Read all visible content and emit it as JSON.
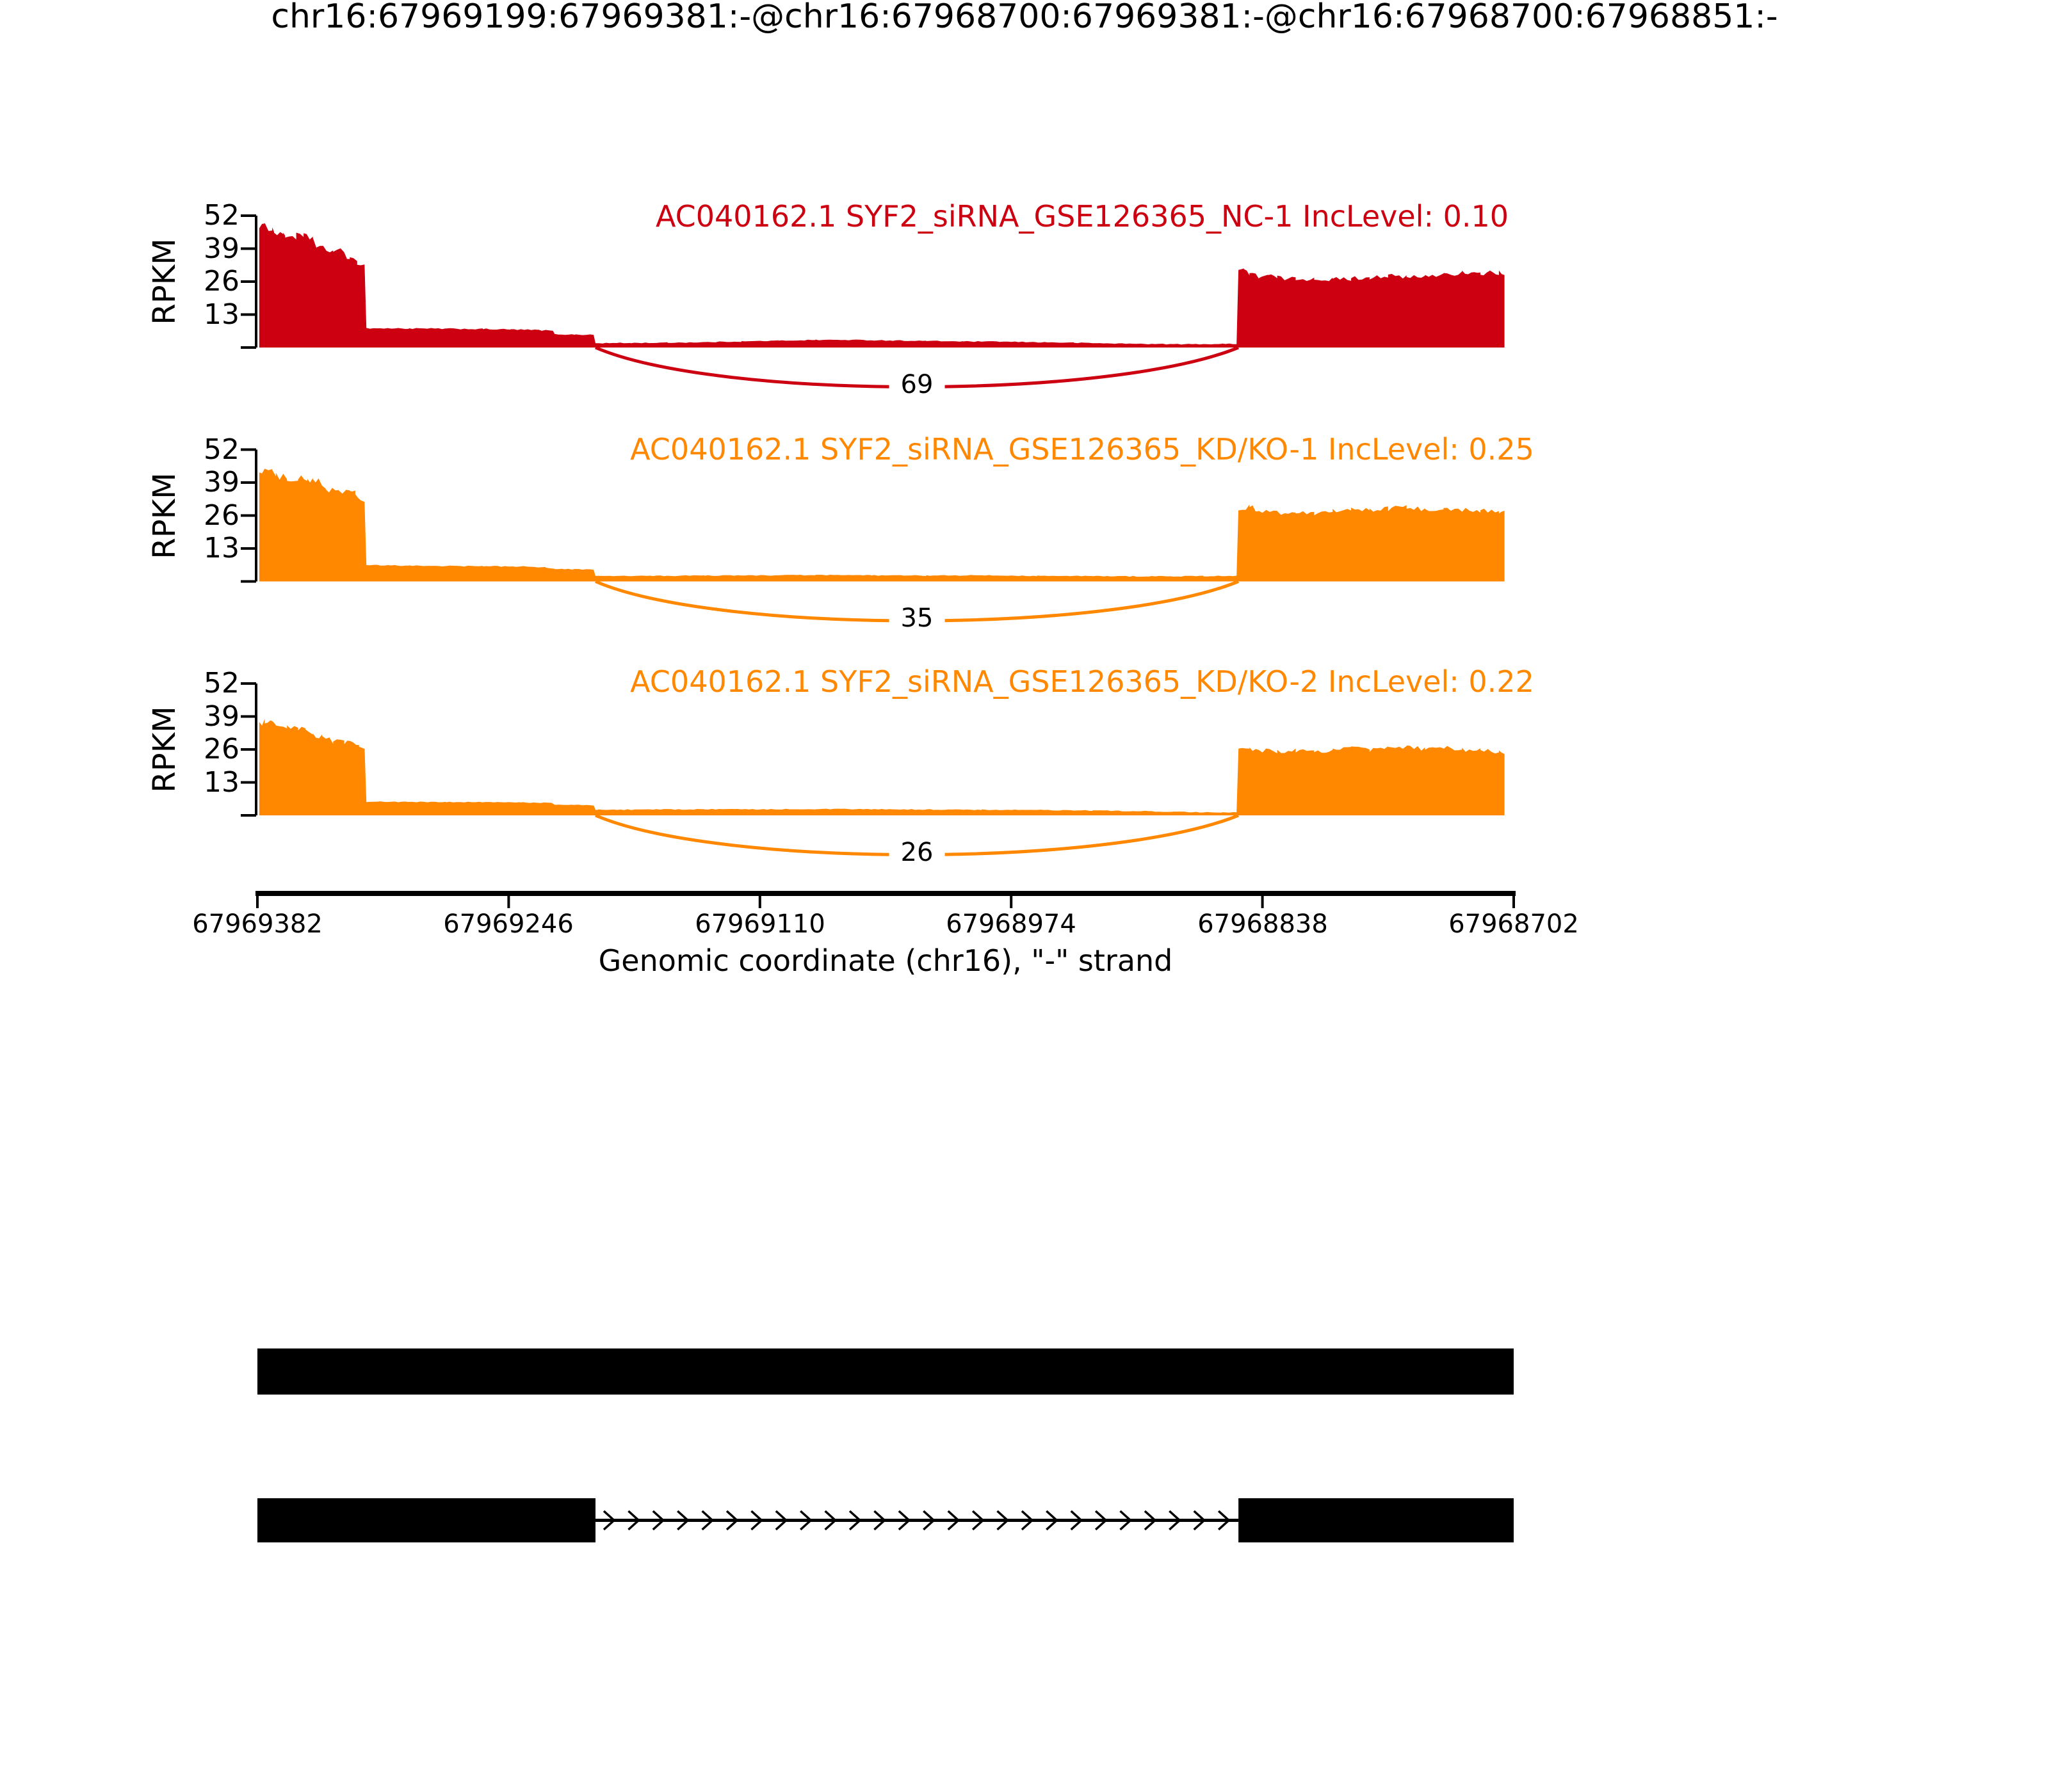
{
  "title": "chr16:67969199:67969381:-@chr16:67968700:67969381:-@chr16:67968700:67968851:-",
  "y_axis": {
    "label": "RPKM",
    "ticks": [
      "52",
      "39",
      "26",
      "13"
    ]
  },
  "x_axis": {
    "label": "Genomic coordinate (chr16), \"-\" strand",
    "ticks": [
      "67969382",
      "67969246",
      "67969110",
      "67968974",
      "67968838",
      "67968702"
    ]
  },
  "tracks": [
    {
      "label": "AC040162.1 SYF2_siRNA_GSE126365_NC-1 IncLevel: 0.10",
      "junction_count": "69",
      "color": "#CC0011"
    },
    {
      "label": "AC040162.1 SYF2_siRNA_GSE126365_KD/KO-1 IncLevel: 0.25",
      "junction_count": "35",
      "color": "#FF8800"
    },
    {
      "label": "AC040162.1 SYF2_siRNA_GSE126365_KD/KO-2 IncLevel: 0.22",
      "junction_count": "26",
      "color": "#FF8800"
    }
  ],
  "chart_data": {
    "type": "area",
    "title": "chr16:67969199:67969381:-@chr16:67968700:67969381:-@chr16:67968700:67968851:-",
    "xlabel": "Genomic coordinate (chr16), \"-\" strand",
    "ylabel": "RPKM",
    "x_range": [
      67969382,
      67968702
    ],
    "x_axis_reversed": true,
    "x_ticks": [
      67969382,
      67969246,
      67969110,
      67968974,
      67968838,
      67968702
    ],
    "y_ticks": [
      13,
      26,
      39,
      52
    ],
    "ylim": [
      0,
      52
    ],
    "event": {
      "chromosome": "chr16",
      "strand": "-",
      "exon_upstream": [
        67969381,
        67969199
      ],
      "exon_long": [
        67969381,
        67968700
      ],
      "exon_downstream": [
        67968851,
        67968700
      ]
    },
    "series": [
      {
        "name": "AC040162.1 SYF2_siRNA_GSE126365_NC-1",
        "inc_level": 0.1,
        "color": "#CC0011",
        "junction": {
          "from": 67969199,
          "to": 67968851,
          "reads": 69
        },
        "coverage": [
          [
            67969381,
            48.5
          ],
          [
            67969378,
            47.6
          ],
          [
            67969374,
            47.4
          ],
          [
            67969373,
            45.6
          ],
          [
            67969368,
            45.3
          ],
          [
            67969367,
            44.1
          ],
          [
            67969361,
            43.9
          ],
          [
            67969357,
            43.6
          ],
          [
            67969352,
            43.3
          ],
          [
            67969350,
            39.2
          ],
          [
            67969341,
            38.2
          ],
          [
            67969335,
            37.7
          ],
          [
            67969332,
            34.6
          ],
          [
            67969328,
            33.6
          ],
          [
            67969324,
            33.2
          ],
          [
            67969323,
            7.6
          ],
          [
            67969300,
            7.5
          ],
          [
            67969280,
            7.4
          ],
          [
            67969260,
            7.3
          ],
          [
            67969245,
            7.1
          ],
          [
            67969230,
            6.9
          ],
          [
            67969222,
            6.6
          ],
          [
            67969221,
            5.2
          ],
          [
            67969210,
            5.1
          ],
          [
            67969200,
            5.0
          ],
          [
            67969199,
            1.7
          ],
          [
            67969180,
            1.8
          ],
          [
            67969160,
            1.9
          ],
          [
            67969140,
            2.1
          ],
          [
            67969120,
            2.4
          ],
          [
            67969100,
            2.7
          ],
          [
            67969080,
            3.0
          ],
          [
            67969060,
            3.0
          ],
          [
            67969040,
            2.8
          ],
          [
            67969020,
            2.6
          ],
          [
            67969000,
            2.4
          ],
          [
            67968980,
            2.3
          ],
          [
            67968960,
            2.1
          ],
          [
            67968940,
            1.9
          ],
          [
            67968920,
            1.6
          ],
          [
            67968900,
            1.4
          ],
          [
            67968880,
            1.3
          ],
          [
            67968860,
            1.4
          ],
          [
            67968852,
            1.5
          ],
          [
            67968851,
            30.5
          ],
          [
            67968848,
            31.0
          ],
          [
            67968845,
            29.0
          ],
          [
            67968840,
            28.0
          ],
          [
            67968835,
            28.5
          ],
          [
            67968830,
            27.5
          ],
          [
            67968820,
            27.0
          ],
          [
            67968810,
            27.3
          ],
          [
            67968800,
            26.8
          ],
          [
            67968790,
            27.2
          ],
          [
            67968780,
            27.8
          ],
          [
            67968770,
            28.3
          ],
          [
            67968760,
            27.6
          ],
          [
            67968750,
            28.0
          ],
          [
            67968740,
            29.0
          ],
          [
            67968730,
            29.5
          ],
          [
            67968725,
            28.8
          ],
          [
            67968720,
            29.2
          ],
          [
            67968715,
            29.8
          ],
          [
            67968710,
            29.4
          ],
          [
            67968707,
            28.9
          ]
        ]
      },
      {
        "name": "AC040162.1 SYF2_siRNA_GSE126365_KD/KO-1",
        "inc_level": 0.25,
        "color": "#FF8800",
        "junction": {
          "from": 67969199,
          "to": 67968851,
          "reads": 35
        },
        "coverage": [
          [
            67969381,
            43.5
          ],
          [
            67969378,
            44.3
          ],
          [
            67969374,
            44.0
          ],
          [
            67969372,
            41.5
          ],
          [
            67969366,
            41.0
          ],
          [
            67969360,
            40.6
          ],
          [
            67969355,
            40.2
          ],
          [
            67969352,
            39.8
          ],
          [
            67969349,
            39.5
          ],
          [
            67969345,
            36.5
          ],
          [
            67969338,
            35.8
          ],
          [
            67969332,
            35.2
          ],
          [
            67969329,
            34.8
          ],
          [
            67969326,
            32.0
          ],
          [
            67969324,
            31.4
          ],
          [
            67969323,
            6.4
          ],
          [
            67969300,
            6.2
          ],
          [
            67969280,
            6.1
          ],
          [
            67969260,
            6.0
          ],
          [
            67969240,
            5.9
          ],
          [
            67969226,
            5.6
          ],
          [
            67969221,
            4.9
          ],
          [
            67969210,
            4.8
          ],
          [
            67969200,
            4.7
          ],
          [
            67969199,
            2.1
          ],
          [
            67969170,
            2.2
          ],
          [
            67969140,
            2.3
          ],
          [
            67969110,
            2.4
          ],
          [
            67969080,
            2.5
          ],
          [
            67969050,
            2.4
          ],
          [
            67969020,
            2.3
          ],
          [
            67968990,
            2.4
          ],
          [
            67968960,
            2.2
          ],
          [
            67968930,
            2.1
          ],
          [
            67968900,
            2.0
          ],
          [
            67968870,
            2.1
          ],
          [
            67968852,
            2.2
          ],
          [
            67968851,
            28.5
          ],
          [
            67968845,
            29.5
          ],
          [
            67968840,
            28.0
          ],
          [
            67968830,
            27.0
          ],
          [
            67968820,
            27.5
          ],
          [
            67968810,
            27.0
          ],
          [
            67968800,
            27.8
          ],
          [
            67968790,
            28.5
          ],
          [
            67968780,
            27.9
          ],
          [
            67968770,
            28.6
          ],
          [
            67968760,
            29.2
          ],
          [
            67968750,
            28.4
          ],
          [
            67968740,
            28.9
          ],
          [
            67968730,
            28.2
          ],
          [
            67968720,
            28.0
          ],
          [
            67968710,
            27.6
          ],
          [
            67968707,
            27.2
          ]
        ]
      },
      {
        "name": "AC040162.1 SYF2_siRNA_GSE126365_KD/KO-2",
        "inc_level": 0.22,
        "color": "#FF8800",
        "junction": {
          "from": 67969199,
          "to": 67968851,
          "reads": 26
        },
        "coverage": [
          [
            67969381,
            36.0
          ],
          [
            67969378,
            37.0
          ],
          [
            67969375,
            36.6
          ],
          [
            67969372,
            34.8
          ],
          [
            67969366,
            34.4
          ],
          [
            67969360,
            34.0
          ],
          [
            67969356,
            33.6
          ],
          [
            67969352,
            31.6
          ],
          [
            67969347,
            31.2
          ],
          [
            67969341,
            29.2
          ],
          [
            67969335,
            28.8
          ],
          [
            67969330,
            28.4
          ],
          [
            67969327,
            27.6
          ],
          [
            67969324,
            27.2
          ],
          [
            67969323,
            5.4
          ],
          [
            67969300,
            5.3
          ],
          [
            67969280,
            5.2
          ],
          [
            67969260,
            5.2
          ],
          [
            67969240,
            5.1
          ],
          [
            67969223,
            5.0
          ],
          [
            67969221,
            4.2
          ],
          [
            67969210,
            4.1
          ],
          [
            67969200,
            4.0
          ],
          [
            67969199,
            2.2
          ],
          [
            67969170,
            2.3
          ],
          [
            67969140,
            2.4
          ],
          [
            67969110,
            2.4
          ],
          [
            67969080,
            2.5
          ],
          [
            67969050,
            2.4
          ],
          [
            67969020,
            2.3
          ],
          [
            67968990,
            2.2
          ],
          [
            67968960,
            2.1
          ],
          [
            67968930,
            1.9
          ],
          [
            67968900,
            1.6
          ],
          [
            67968880,
            1.3
          ],
          [
            67968860,
            1.1
          ],
          [
            67968852,
            1.2
          ],
          [
            67968851,
            25.5
          ],
          [
            67968845,
            26.5
          ],
          [
            67968840,
            25.8
          ],
          [
            67968830,
            25.2
          ],
          [
            67968820,
            25.6
          ],
          [
            67968810,
            25.0
          ],
          [
            67968800,
            25.8
          ],
          [
            67968790,
            26.4
          ],
          [
            67968780,
            25.9
          ],
          [
            67968770,
            26.6
          ],
          [
            67968760,
            27.0
          ],
          [
            67968750,
            26.2
          ],
          [
            67968740,
            26.6
          ],
          [
            67968730,
            26.0
          ],
          [
            67968720,
            25.6
          ],
          [
            67968710,
            25.2
          ],
          [
            67968707,
            24.8
          ]
        ]
      }
    ],
    "isoforms": [
      {
        "exons": [
          [
            67969382,
            67968702
          ]
        ]
      },
      {
        "exons": [
          [
            67969382,
            67969199
          ],
          [
            67968851,
            67968702
          ]
        ],
        "intron": [
          67969199,
          67968851
        ],
        "intron_arrow_direction": "right"
      }
    ]
  }
}
